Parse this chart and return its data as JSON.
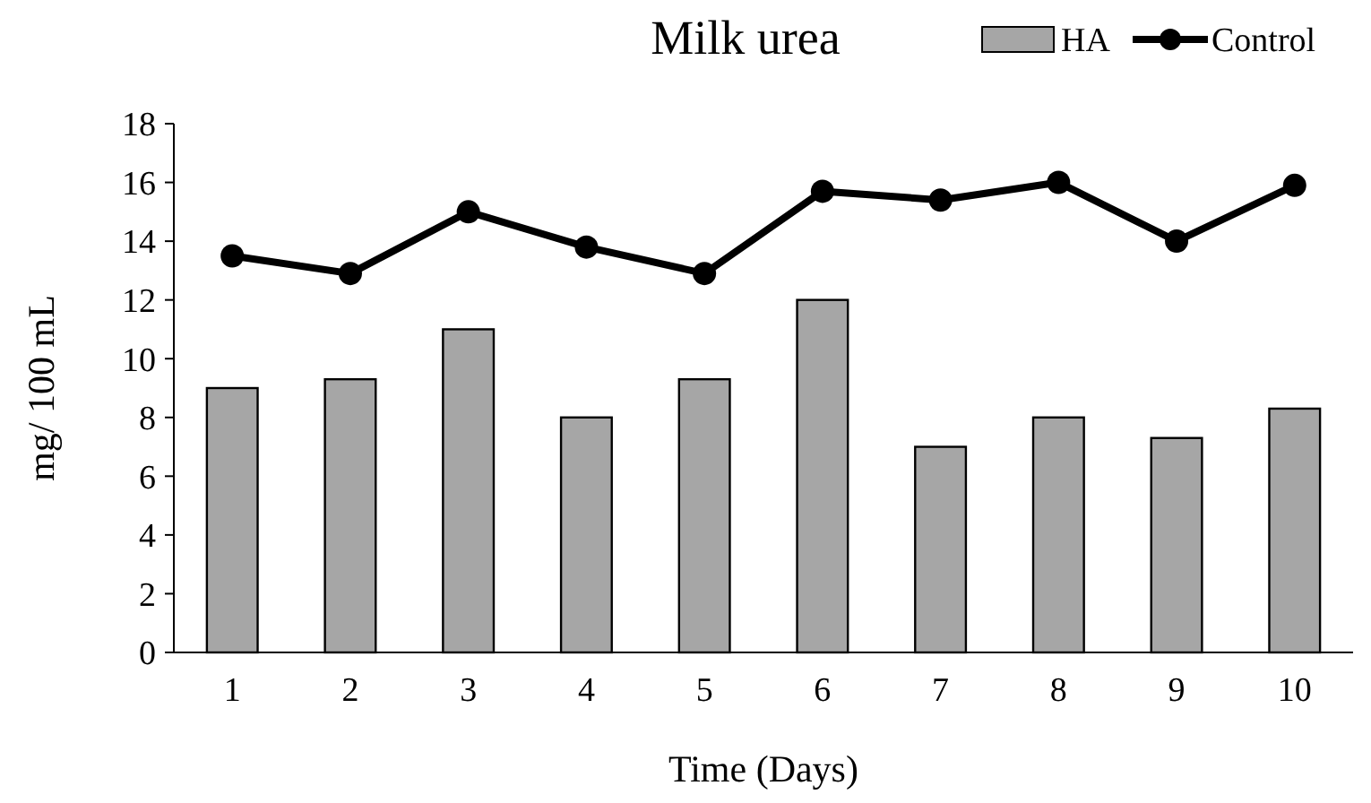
{
  "chart_data": {
    "type": "bar",
    "title": "Milk urea",
    "xlabel": "Time (Days)",
    "ylabel": "mg/ 100 mL",
    "categories": [
      "1",
      "2",
      "3",
      "4",
      "5",
      "6",
      "7",
      "8",
      "9",
      "10"
    ],
    "series": [
      {
        "name": "HA",
        "color": "#a6a6a6",
        "values": [
          9,
          9.3,
          11,
          8,
          9.3,
          12,
          7,
          8,
          7.3,
          8.3
        ]
      },
      {
        "name": "Control",
        "type": "line",
        "color": "#000000",
        "values": [
          13.5,
          12.9,
          15,
          13.8,
          12.9,
          15.7,
          15.4,
          16,
          14,
          15.9
        ]
      }
    ],
    "ylim": [
      0,
      18
    ],
    "yticks": [
      0,
      2,
      4,
      6,
      8,
      10,
      12,
      14,
      16,
      18
    ],
    "grid": false,
    "legend": "top right",
    "marker": "circle",
    "line_style": "solid"
  }
}
